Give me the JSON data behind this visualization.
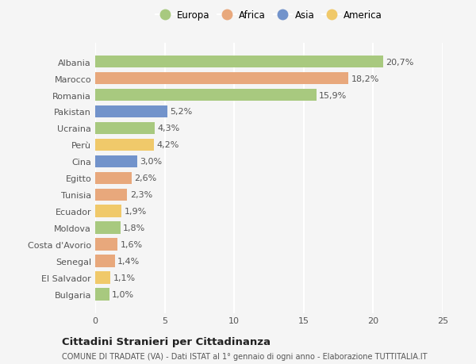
{
  "countries": [
    "Albania",
    "Marocco",
    "Romania",
    "Pakistan",
    "Ucraina",
    "Perù",
    "Cina",
    "Egitto",
    "Tunisia",
    "Ecuador",
    "Moldova",
    "Costa d'Avorio",
    "Senegal",
    "El Salvador",
    "Bulgaria"
  ],
  "values": [
    20.7,
    18.2,
    15.9,
    5.2,
    4.3,
    4.2,
    3.0,
    2.6,
    2.3,
    1.9,
    1.8,
    1.6,
    1.4,
    1.1,
    1.0
  ],
  "labels": [
    "20,7%",
    "18,2%",
    "15,9%",
    "5,2%",
    "4,3%",
    "4,2%",
    "3,0%",
    "2,6%",
    "2,3%",
    "1,9%",
    "1,8%",
    "1,6%",
    "1,4%",
    "1,1%",
    "1,0%"
  ],
  "continents": [
    "Europa",
    "Africa",
    "Europa",
    "Asia",
    "Europa",
    "America",
    "Asia",
    "Africa",
    "Africa",
    "America",
    "Europa",
    "Africa",
    "Africa",
    "America",
    "Europa"
  ],
  "continent_colors": {
    "Europa": "#a8c97f",
    "Africa": "#e8a87c",
    "Asia": "#7293cb",
    "America": "#f0c96a"
  },
  "legend_order": [
    "Europa",
    "Africa",
    "Asia",
    "America"
  ],
  "title": "Cittadini Stranieri per Cittadinanza",
  "subtitle": "COMUNE DI TRADATE (VA) - Dati ISTAT al 1° gennaio di ogni anno - Elaborazione TUTTITALIA.IT",
  "xlim": [
    0,
    25
  ],
  "xticks": [
    0,
    5,
    10,
    15,
    20,
    25
  ],
  "bg_color": "#f5f5f5",
  "grid_color": "#ffffff",
  "bar_height": 0.75,
  "label_fontsize": 8,
  "ytick_fontsize": 8,
  "xtick_fontsize": 8,
  "title_fontsize": 9.5,
  "subtitle_fontsize": 7,
  "legend_fontsize": 8.5
}
